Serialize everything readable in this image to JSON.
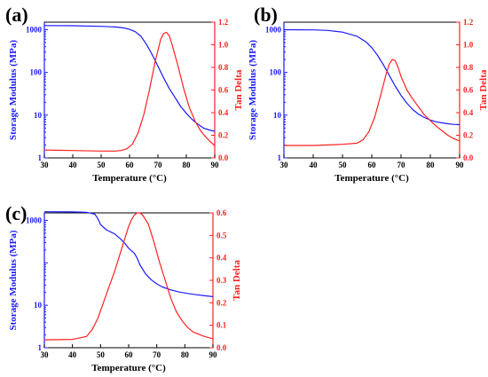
{
  "chart_data": [
    {
      "type": "line",
      "panel_label": "(a)",
      "xlabel": "Temperature (°C)",
      "ylabel_left": "Storage Modulus (MPa)",
      "ylabel_right": "Tan Delta",
      "xlim": [
        30,
        90
      ],
      "x_ticks": [
        30,
        40,
        50,
        60,
        70,
        80,
        90
      ],
      "ylim_left": [
        1,
        1500
      ],
      "y_scale_left": "log",
      "y_ticks_left": [
        1,
        10,
        100,
        1000
      ],
      "ylim_right": [
        0,
        1.2
      ],
      "y_ticks_right": [
        0.0,
        0.2,
        0.4,
        0.6,
        0.8,
        1.0,
        1.2
      ],
      "series": [
        {
          "axis": "left",
          "color": "#1a1aff",
          "x": [
            30,
            40,
            50,
            55,
            58,
            60,
            62,
            64,
            66,
            68,
            70,
            72,
            74,
            76,
            78,
            80,
            82,
            84,
            86,
            88,
            90
          ],
          "y": [
            1250,
            1240,
            1200,
            1160,
            1100,
            1020,
            900,
            700,
            450,
            260,
            140,
            75,
            42,
            26,
            16,
            11,
            8,
            6.2,
            5,
            4.5,
            4.2
          ]
        },
        {
          "axis": "right",
          "color": "#ff2020",
          "x": [
            30,
            40,
            50,
            55,
            57,
            59,
            61,
            63,
            65,
            67,
            69,
            71,
            72,
            73,
            74,
            75,
            77,
            79,
            81,
            83,
            85,
            87,
            89,
            90
          ],
          "y": [
            0.07,
            0.065,
            0.06,
            0.06,
            0.065,
            0.08,
            0.12,
            0.22,
            0.38,
            0.6,
            0.85,
            1.05,
            1.1,
            1.11,
            1.08,
            1.0,
            0.82,
            0.62,
            0.45,
            0.33,
            0.24,
            0.18,
            0.13,
            0.11
          ]
        }
      ]
    },
    {
      "type": "line",
      "panel_label": "(b)",
      "xlabel": "Temperature (°C)",
      "ylabel_left": "Storage Modulus (MPa)",
      "ylabel_right": "Tan Delta",
      "xlim": [
        30,
        90
      ],
      "x_ticks": [
        30,
        40,
        50,
        60,
        70,
        80,
        90
      ],
      "ylim_left": [
        1,
        1500
      ],
      "y_scale_left": "log",
      "y_ticks_left": [
        1,
        10,
        100,
        1000
      ],
      "ylim_right": [
        0,
        1.2
      ],
      "y_ticks_right": [
        0.0,
        0.2,
        0.4,
        0.6,
        0.8,
        1.0,
        1.2
      ],
      "series": [
        {
          "axis": "left",
          "color": "#1a1aff",
          "x": [
            30,
            40,
            45,
            50,
            55,
            58,
            60,
            62,
            64,
            66,
            68,
            70,
            72,
            74,
            76,
            78,
            80,
            82,
            84,
            86,
            88,
            90
          ],
          "y": [
            1000,
            990,
            960,
            880,
            700,
            520,
            380,
            250,
            150,
            85,
            48,
            29,
            19,
            13.5,
            10.5,
            8.8,
            7.7,
            7.0,
            6.6,
            6.3,
            6.1,
            6.0
          ]
        },
        {
          "axis": "right",
          "color": "#ff2020",
          "x": [
            30,
            40,
            50,
            55,
            57,
            59,
            61,
            63,
            65,
            66,
            67,
            68,
            69,
            70,
            72,
            74,
            76,
            78,
            80,
            82,
            84,
            86,
            88,
            90
          ],
          "y": [
            0.11,
            0.11,
            0.12,
            0.13,
            0.16,
            0.23,
            0.36,
            0.55,
            0.75,
            0.83,
            0.87,
            0.86,
            0.8,
            0.72,
            0.6,
            0.52,
            0.45,
            0.38,
            0.33,
            0.28,
            0.24,
            0.2,
            0.17,
            0.15
          ]
        }
      ]
    },
    {
      "type": "line",
      "panel_label": "(c)",
      "xlabel": "Temperature (°C)",
      "ylabel_left": "Storage Modulus (MPa)",
      "ylabel_right": "Tan Delta",
      "xlim": [
        30,
        90
      ],
      "x_ticks": [
        30,
        40,
        50,
        60,
        70,
        80,
        90
      ],
      "ylim_left": [
        1,
        1500
      ],
      "y_scale_left": "log",
      "y_ticks_left": [
        1,
        10,
        1000
      ],
      "ylim_right": [
        0,
        0.6
      ],
      "y_ticks_right": [
        0.0,
        0.1,
        0.2,
        0.3,
        0.4,
        0.5,
        0.6
      ],
      "series": [
        {
          "axis": "left",
          "color": "#1a1aff",
          "x": [
            30,
            40,
            45,
            48,
            49,
            50,
            52,
            55,
            57,
            59,
            60,
            62,
            63,
            64,
            66,
            68,
            70,
            72,
            75,
            78,
            81,
            84,
            87,
            90
          ],
          "y": [
            1600,
            1580,
            1550,
            1400,
            1100,
            800,
            600,
            480,
            370,
            270,
            220,
            170,
            130,
            90,
            55,
            40,
            32,
            27,
            23,
            20.5,
            19,
            17.8,
            16.8,
            16
          ]
        },
        {
          "axis": "right",
          "color": "#ff2020",
          "x": [
            30,
            40,
            45,
            47,
            49,
            51,
            53,
            55,
            57,
            59,
            60,
            61,
            62,
            63,
            64,
            65,
            67,
            69,
            71,
            73,
            75,
            77,
            79,
            81,
            83,
            85,
            87,
            90
          ],
          "y": [
            0.035,
            0.037,
            0.05,
            0.08,
            0.13,
            0.2,
            0.27,
            0.34,
            0.42,
            0.5,
            0.54,
            0.57,
            0.59,
            0.6,
            0.6,
            0.59,
            0.55,
            0.47,
            0.38,
            0.3,
            0.22,
            0.16,
            0.12,
            0.09,
            0.07,
            0.06,
            0.05,
            0.04
          ]
        }
      ]
    }
  ]
}
